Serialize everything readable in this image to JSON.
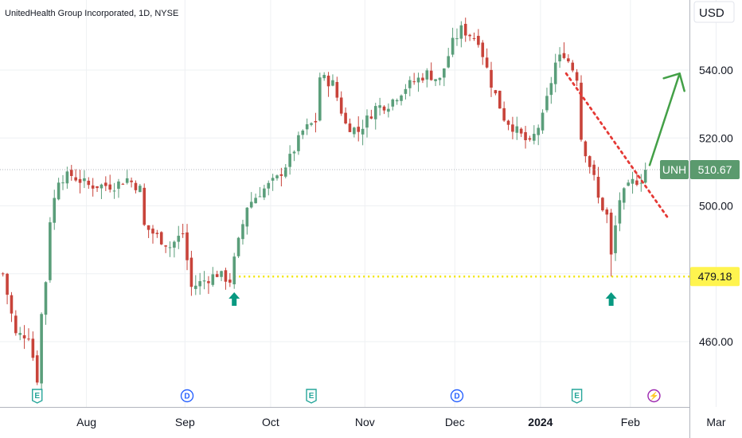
{
  "header": {
    "title": "UnitedHealth Group Incorporated, 1D, NYSE"
  },
  "currency_button": {
    "label": "USD"
  },
  "colors": {
    "up": "#26a69a",
    "up_fill": "#5a9e7a",
    "down": "#c8433a",
    "grid": "#eef0f3",
    "support": "#f2e600",
    "resistance_dash": "#e53935",
    "projection": "#43a047",
    "arrow_marker": "#089981",
    "symbol_badge": "#5b9a6e",
    "price_badge": "#fff44f"
  },
  "chart_data": {
    "type": "candlestick",
    "symbol": "UNH",
    "interval": "1D",
    "exchange": "NYSE",
    "ylim": [
      442,
      560
    ],
    "y_ticks": [
      "540.00",
      "520.00",
      "500.00",
      "460.00"
    ],
    "x_labels": [
      "Aug",
      "Sep",
      "Oct",
      "Nov",
      "Dec",
      "2024",
      "Feb",
      "Mar"
    ],
    "last_price": {
      "label": "UNH",
      "value": "510.67"
    },
    "support_level": {
      "value": "479.18"
    },
    "events": [
      {
        "type": "E",
        "label": "E"
      },
      {
        "type": "D",
        "label": "D"
      },
      {
        "type": "E",
        "label": "E"
      },
      {
        "type": "D",
        "label": "D"
      },
      {
        "type": "E",
        "label": "E"
      },
      {
        "type": "split",
        "label": "⚡"
      }
    ],
    "annotations": {
      "support_line": {
        "from_date": "2023-09-19",
        "value": 479.18
      },
      "resistance_trend": {
        "from": [
          "2024-01-10",
          539
        ],
        "to": [
          "2024-02-14",
          496
        ]
      },
      "projection_arrow": {
        "from": [
          "2024-02-06",
          512
        ],
        "to": [
          "2024-02-15",
          539
        ]
      },
      "up_markers": [
        "2023-09-19",
        "2024-01-25"
      ]
    },
    "ohlc": []
  }
}
